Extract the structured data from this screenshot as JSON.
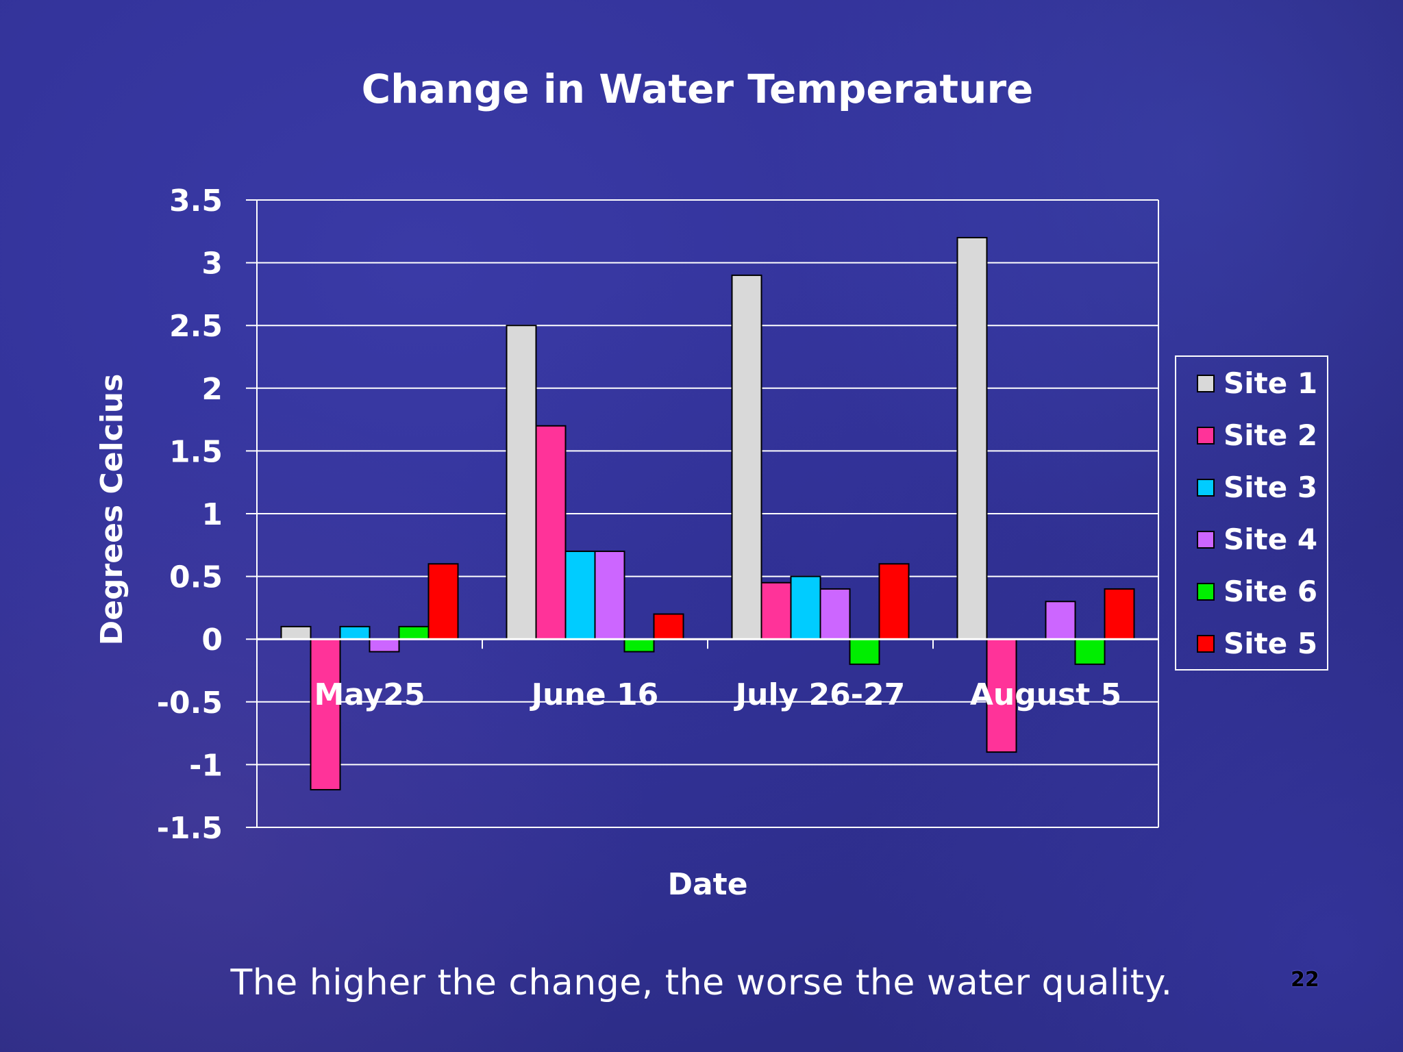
{
  "slide": {
    "caption": "The higher the change, the worse the water quality.",
    "page_number": "22"
  },
  "chart_data": {
    "type": "bar",
    "title": "Change in Water Temperature",
    "xlabel": "Date",
    "ylabel": "Degrees Celcius",
    "categories": [
      "May25",
      "June 16",
      "July 26-27",
      "August 5"
    ],
    "ylim": [
      -1.5,
      3.5
    ],
    "yticks": [
      3.5,
      3,
      2.5,
      2,
      1.5,
      1,
      0.5,
      0,
      -0.5,
      -1,
      -1.5
    ],
    "ytick_labels": [
      "3.5",
      "3",
      "2.5",
      "2",
      "1.5",
      "1",
      "0.5",
      "0",
      "-0.5",
      "-1",
      "-1.5"
    ],
    "grid": true,
    "legend_position": "right",
    "series": [
      {
        "name": "Site 1",
        "color": "#d9d9d9",
        "values": [
          0.1,
          2.5,
          2.9,
          3.2
        ]
      },
      {
        "name": "Site 2",
        "color": "#ff3399",
        "values": [
          -1.2,
          1.7,
          0.45,
          -0.9
        ]
      },
      {
        "name": "Site 3",
        "color": "#00ccff",
        "values": [
          0.1,
          0.7,
          0.5,
          0
        ]
      },
      {
        "name": "Site 4",
        "color": "#cc66ff",
        "values": [
          -0.1,
          0.7,
          0.4,
          0.3
        ]
      },
      {
        "name": "Site 6",
        "color": "#00ee00",
        "values": [
          0.1,
          -0.1,
          -0.2,
          -0.2
        ]
      },
      {
        "name": "Site 5",
        "color": "#ff0000",
        "values": [
          0.6,
          0.2,
          0.6,
          0.4
        ]
      }
    ]
  }
}
